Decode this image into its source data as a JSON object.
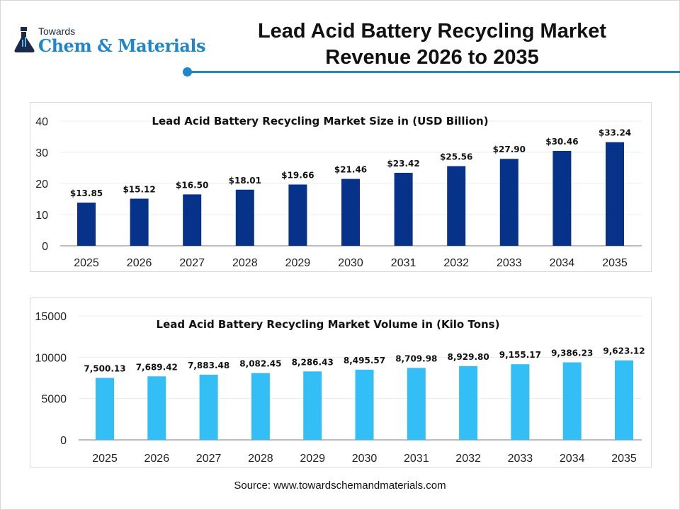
{
  "logo": {
    "line1": "Towards",
    "line2": "Chem & Materials"
  },
  "title_lines": [
    "Lead Acid Battery Recycling Market",
    "Revenue 2026 to 2035"
  ],
  "source": "Source: www.towardschemandmaterials.com",
  "colors": {
    "accent": "#1f86c9",
    "chart1_bar": "#073289",
    "chart2_bar": "#33bff5"
  },
  "chart_data": [
    {
      "type": "bar",
      "title": "Lead Acid Battery Recycling Market Size in (USD Billion)",
      "categories": [
        "2025",
        "2026",
        "2027",
        "2028",
        "2029",
        "2030",
        "2031",
        "2032",
        "2033",
        "2034",
        "2035"
      ],
      "values": [
        13.85,
        15.12,
        16.5,
        18.01,
        19.66,
        21.46,
        23.42,
        25.56,
        27.9,
        30.46,
        33.24
      ],
      "data_labels": [
        "$13.85",
        "$15.12",
        "$16.50",
        "$18.01",
        "$19.66",
        "$21.46",
        "$23.42",
        "$25.56",
        "$27.90",
        "$30.46",
        "$33.24"
      ],
      "yticks": [
        "0",
        "10",
        "20",
        "30",
        "40"
      ],
      "ylim": [
        0,
        40
      ],
      "grid": true
    },
    {
      "type": "bar",
      "title": "Lead Acid Battery Recycling Market Volume in (Kilo Tons)",
      "categories": [
        "2025",
        "2026",
        "2027",
        "2028",
        "2029",
        "2030",
        "2031",
        "2032",
        "2033",
        "2034",
        "2035"
      ],
      "values": [
        7500.13,
        7689.42,
        7883.48,
        8082.45,
        8286.43,
        8495.57,
        8709.98,
        8929.8,
        9155.17,
        9386.23,
        9623.12
      ],
      "data_labels": [
        "7,500.13",
        "7,689.42",
        "7,883.48",
        "8,082.45",
        "8,286.43",
        "8,495.57",
        "8,709.98",
        "8,929.80",
        "9,155.17",
        "9,386.23",
        "9,623.12"
      ],
      "yticks": [
        "0",
        "5000",
        "10000",
        "15000"
      ],
      "ylim": [
        0,
        15000
      ],
      "grid": true
    }
  ]
}
